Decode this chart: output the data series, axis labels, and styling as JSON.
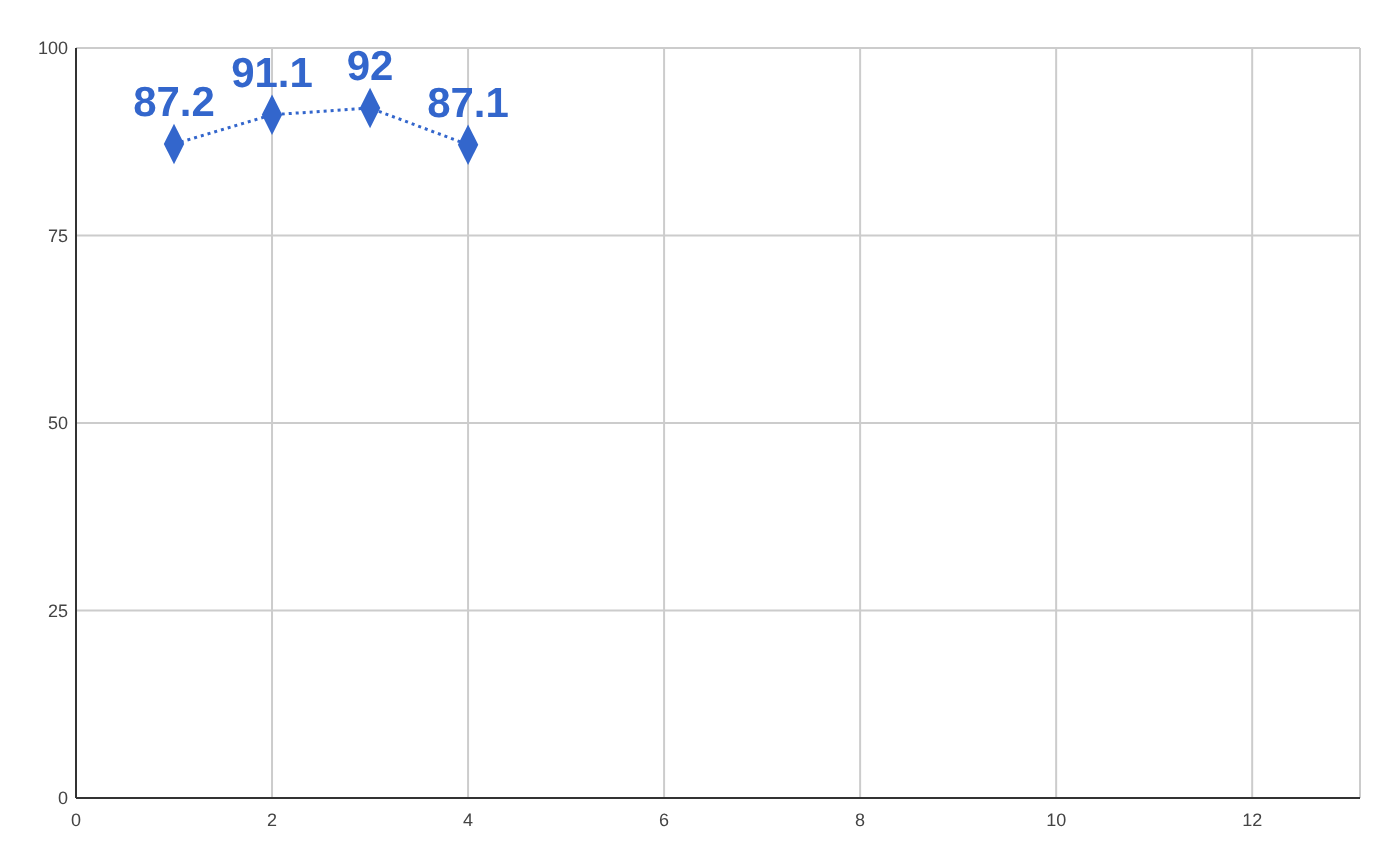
{
  "chart_data": {
    "type": "line",
    "x": [
      1,
      2,
      3,
      4
    ],
    "series": [
      {
        "color": "#3366cc",
        "values": [
          87.2,
          91.1,
          92,
          87.1
        ]
      }
    ],
    "xlim": [
      0,
      13.1
    ],
    "xticks": [
      0,
      2,
      4,
      6,
      8,
      10,
      12
    ],
    "ylim": [
      0,
      100
    ],
    "yticks": [
      0,
      25,
      50,
      75,
      100
    ],
    "grid": true,
    "marker": "diamond",
    "line_style": "dotted",
    "data_labels": true
  }
}
